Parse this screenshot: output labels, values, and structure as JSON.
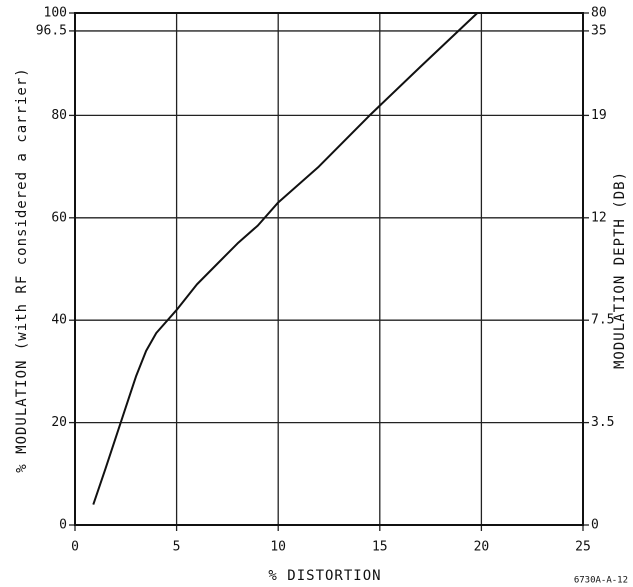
{
  "chart_data": {
    "type": "line",
    "x_label": "% DISTORTION",
    "y_label": "% MODULATION (with RF considered a carrier)",
    "y2_label": "MODULATION DEPTH (DB)",
    "footnote": "6730A-A-12",
    "xlim": [
      0,
      25
    ],
    "xticks": [
      0,
      5,
      10,
      15,
      20,
      25
    ],
    "ylim": [
      0,
      100
    ],
    "yticks": [
      0,
      20,
      40,
      60,
      80,
      96.5,
      100
    ],
    "y2ticks": [
      {
        "value": 0,
        "y": 0
      },
      {
        "value": 3.5,
        "y": 20
      },
      {
        "value": 7.5,
        "y": 40
      },
      {
        "value": 12,
        "y": 60
      },
      {
        "value": 19,
        "y": 80
      },
      {
        "value": 35,
        "y": 96.5
      },
      {
        "value": 80,
        "y": 100
      }
    ],
    "grid": true,
    "series": [
      {
        "color": "#111111",
        "x": [
          0.9,
          1.5,
          2,
          2.5,
          3,
          3.5,
          4,
          5,
          6,
          7,
          8,
          9,
          10,
          12,
          14.5,
          17,
          19.8
        ],
        "values": [
          4,
          11,
          17,
          23,
          29,
          34,
          37.5,
          42,
          47,
          51,
          55,
          58.5,
          63,
          70,
          80,
          89.5,
          100
        ]
      }
    ]
  }
}
